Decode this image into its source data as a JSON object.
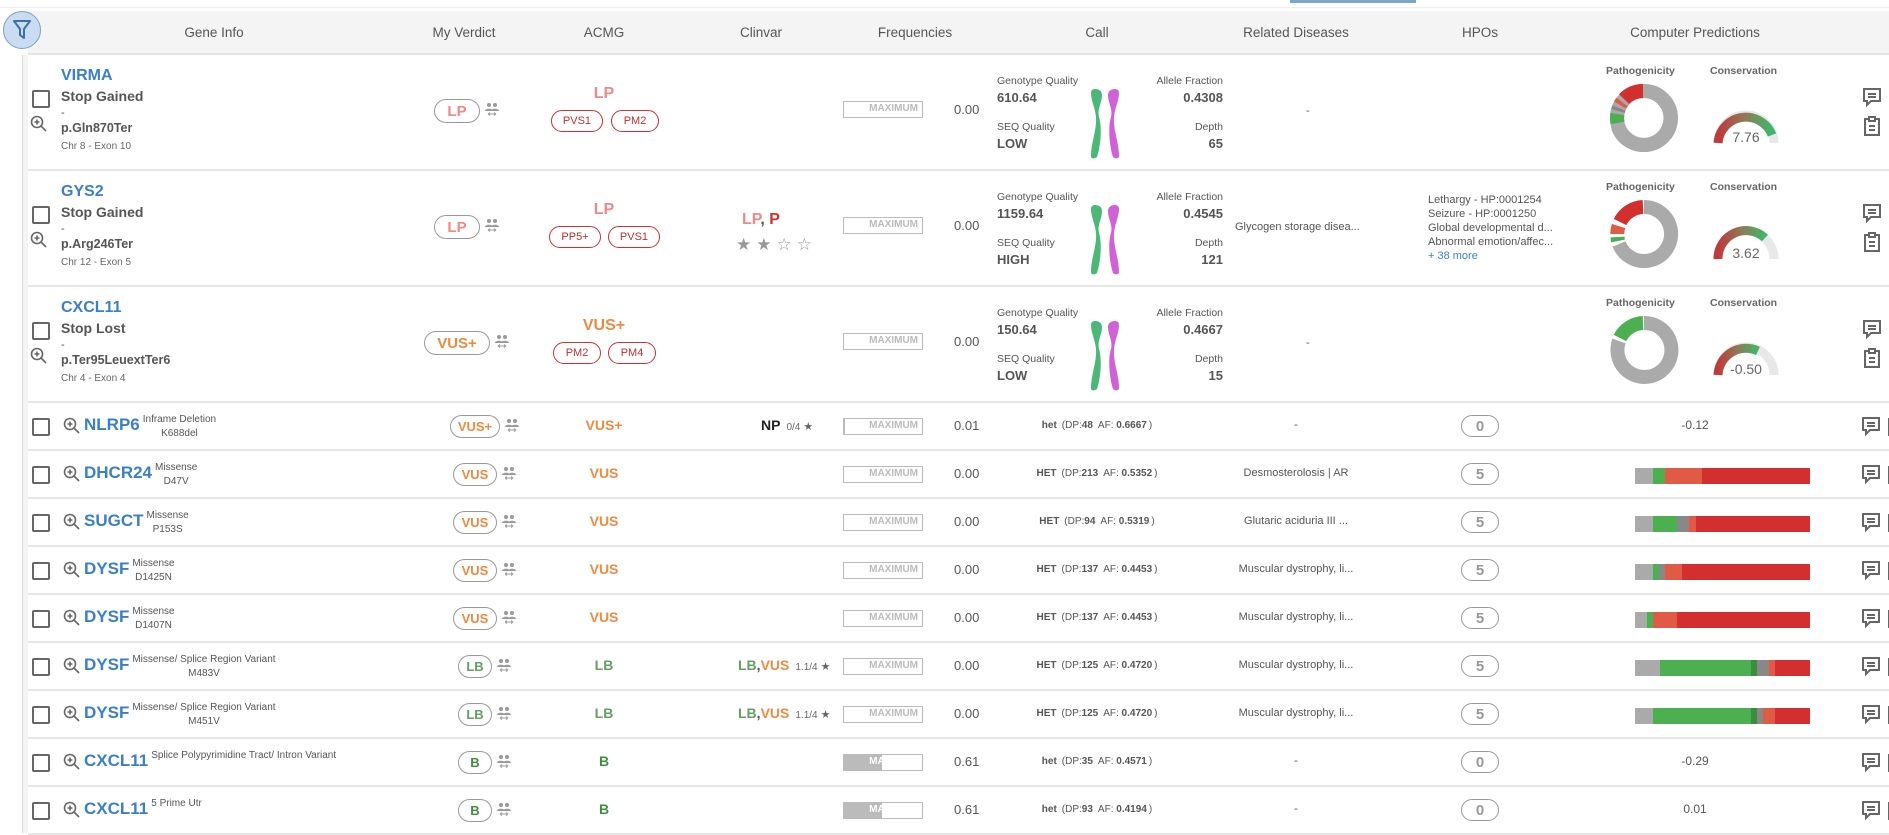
{
  "header": {
    "filter_icon": "filter-icon",
    "columns": [
      "Gene Info",
      "My Verdict",
      "ACMG",
      "Clinvar",
      "Frequencies",
      "Call",
      "Related Diseases",
      "HPOs",
      "Computer Predictions"
    ]
  },
  "labels": {
    "genotype_quality": "Genotype Quality",
    "allele_fraction": "Allele Fraction",
    "seq_quality": "SEQ Quality",
    "depth": "Depth",
    "pathogenicity": "Pathogenicity",
    "conservation": "Conservation",
    "maximum": "MAXIMUM"
  },
  "expanded_rows": [
    {
      "gene": "VIRMA",
      "effect": "Stop Gained",
      "dash": "-",
      "protein": "p.Gln870Ter",
      "location": "Chr 8 - Exon 10",
      "verdict": "LP",
      "acmg": "LP",
      "criteria": [
        "PVS1",
        "PM2"
      ],
      "clinvar": "",
      "clinvar_stars": null,
      "frequency": "0.00",
      "gq": "610.64",
      "af": "0.4308",
      "seq": "LOW",
      "depth": "65",
      "disease": "-",
      "hpos": [],
      "hpo_more": "",
      "conservation": "7.76"
    },
    {
      "gene": "GYS2",
      "effect": "Stop Gained",
      "dash": "-",
      "protein": "p.Arg246Ter",
      "location": "Chr 12 - Exon 5",
      "verdict": "LP",
      "acmg": "LP",
      "criteria": [
        "PP5+",
        "PVS1"
      ],
      "clinvar_a": "LP",
      "clinvar_sep": ", ",
      "clinvar_b": "P",
      "clinvar_stars": "2/4",
      "frequency": "0.00",
      "gq": "1159.64",
      "af": "0.4545",
      "seq": "HIGH",
      "depth": "121",
      "disease": "Glycogen storage disea...",
      "hpos": [
        "Lethargy - HP:0001254",
        "Seizure - HP:0001250",
        "Global developmental d...",
        "Abnormal emotion/affec..."
      ],
      "hpo_more": "+ 38 more",
      "conservation": "3.62"
    },
    {
      "gene": "CXCL11",
      "effect": "Stop Lost",
      "dash": "-",
      "protein": "p.Ter95LeuextTer6",
      "location": "Chr 4 - Exon 4",
      "verdict": "VUS+",
      "acmg": "VUS+",
      "criteria": [
        "PM2",
        "PM4"
      ],
      "clinvar": "",
      "frequency": "0.00",
      "gq": "150.64",
      "af": "0.4667",
      "seq": "LOW",
      "depth": "15",
      "disease": "-",
      "hpos": [],
      "hpo_more": "",
      "conservation": "-0.50"
    }
  ],
  "compact_rows": [
    {
      "gene": "NLRP6",
      "effect": "Inframe Deletion",
      "protein": "K688del",
      "verdict": "VUS+",
      "acmg": "VUS+",
      "clinvar_a": "NP",
      "clinvar_b": "",
      "clinvar_score": "0/4",
      "frequency": "0.01",
      "zyg": "het",
      "dp": "48",
      "af": "0.6667",
      "disease": "-",
      "hpo": "0",
      "prediction": "-0.12"
    },
    {
      "gene": "DHCR24",
      "effect": "Missense",
      "protein": "D47V",
      "verdict": "VUS",
      "acmg": "VUS",
      "clinvar_a": "",
      "clinvar_b": "",
      "clinvar_score": "",
      "frequency": "0.00",
      "zyg": "HET",
      "dp": "213",
      "af": "0.5352",
      "disease": "Desmosterolosis | AR",
      "hpo": "5",
      "prediction": ""
    },
    {
      "gene": "SUGCT",
      "effect": "Missense",
      "protein": "P153S",
      "verdict": "VUS",
      "acmg": "VUS",
      "clinvar_a": "",
      "clinvar_b": "",
      "clinvar_score": "",
      "frequency": "0.00",
      "zyg": "HET",
      "dp": "94",
      "af": "0.5319",
      "disease": "Glutaric aciduria III ...",
      "hpo": "5",
      "prediction": ""
    },
    {
      "gene": "DYSF",
      "effect": "Missense",
      "protein": "D1425N",
      "verdict": "VUS",
      "acmg": "VUS",
      "clinvar_a": "",
      "clinvar_b": "",
      "clinvar_score": "",
      "frequency": "0.00",
      "zyg": "HET",
      "dp": "137",
      "af": "0.4453",
      "disease": "Muscular dystrophy, li...",
      "hpo": "5",
      "prediction": ""
    },
    {
      "gene": "DYSF",
      "effect": "Missense",
      "protein": "D1407N",
      "verdict": "VUS",
      "acmg": "VUS",
      "clinvar_a": "",
      "clinvar_b": "",
      "clinvar_score": "",
      "frequency": "0.00",
      "zyg": "HET",
      "dp": "137",
      "af": "0.4453",
      "disease": "Muscular dystrophy, li...",
      "hpo": "5",
      "prediction": ""
    },
    {
      "gene": "DYSF",
      "effect": "Missense/ Splice Region Variant",
      "protein": "M483V",
      "verdict": "LB",
      "acmg": "LB",
      "clinvar_a": "LB",
      "clinvar_b": "VUS",
      "clinvar_score": "1.1/4",
      "frequency": "0.00",
      "zyg": "HET",
      "dp": "125",
      "af": "0.4720",
      "disease": "Muscular dystrophy, li...",
      "hpo": "5",
      "prediction": ""
    },
    {
      "gene": "DYSF",
      "effect": "Missense/ Splice Region Variant",
      "protein": "M451V",
      "verdict": "LB",
      "acmg": "LB",
      "clinvar_a": "LB",
      "clinvar_b": "VUS",
      "clinvar_score": "1.1/4",
      "frequency": "0.00",
      "zyg": "HET",
      "dp": "125",
      "af": "0.4720",
      "disease": "Muscular dystrophy, li...",
      "hpo": "5",
      "prediction": ""
    },
    {
      "gene": "CXCL11",
      "effect": "Splice Polypyrimidine Tract/ Intron Variant",
      "protein": "",
      "verdict": "B",
      "acmg": "B",
      "clinvar_a": "",
      "clinvar_b": "",
      "clinvar_score": "",
      "frequency": "0.61",
      "zyg": "het",
      "dp": "35",
      "af": "0.4571",
      "disease": "-",
      "hpo": "0",
      "prediction": "-0.29"
    },
    {
      "gene": "CXCL11",
      "effect": "5 Prime Utr",
      "protein": "",
      "verdict": "B",
      "acmg": "B",
      "clinvar_a": "",
      "clinvar_b": "",
      "clinvar_score": "",
      "frequency": "0.61",
      "zyg": "het",
      "dp": "93",
      "af": "0.4194",
      "disease": "-",
      "hpo": "0",
      "prediction": "0.01"
    }
  ],
  "call_format": {
    "dp_prefix": "(DP:",
    "af_prefix": "AF: ",
    "suffix": ")"
  },
  "colors": {
    "link": "#3a7fc7",
    "lp": "#ef8a8a",
    "p": "#d03030",
    "vus": "#ec8c42",
    "lb": "#63a063",
    "b": "#3f8f3f",
    "grey": "#aaaaaa",
    "green": "#4caf50",
    "red": "#d32f2f",
    "orange": "#e05a45",
    "darkgrey": "#888888",
    "darkgreen": "#388e3c"
  }
}
